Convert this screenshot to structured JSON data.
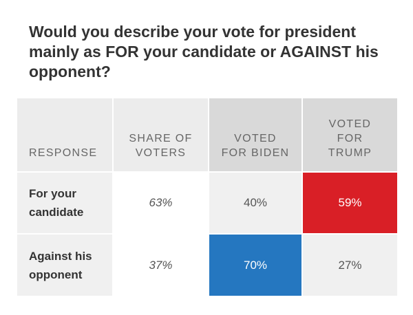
{
  "title": "Would you describe your vote for president mainly as FOR your candidate or AGAINST his opponent?",
  "colors": {
    "header_bg": "#ececec",
    "header_dark_bg": "#d9d9d9",
    "cell_bg": "#f0f0f0",
    "white": "#ffffff",
    "trump_red": "#d91f26",
    "biden_blue": "#2577c0"
  },
  "chart_data": {
    "type": "table",
    "title": "Would you describe your vote for president mainly as FOR your candidate or AGAINST his opponent?",
    "columns": [
      "RESPONSE",
      "SHARE OF\nVOTERS",
      "VOTED\nFOR BIDEN",
      "VOTED\nFOR\nTRUMP"
    ],
    "rows": [
      {
        "label": "For your\ncandidate",
        "values": [
          "63%",
          "40%",
          "59%"
        ],
        "highlight": "trump"
      },
      {
        "label": "Against his\nopponent",
        "values": [
          "37%",
          "70%",
          "27%"
        ],
        "highlight": "biden"
      }
    ]
  }
}
